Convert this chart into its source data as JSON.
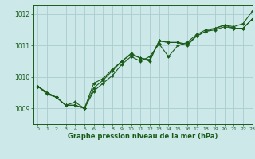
{
  "title": "Graphe pression niveau de la mer (hPa)",
  "background_color": "#cce8e8",
  "grid_color": "#aacccc",
  "line_color": "#1a5c1a",
  "xlim": [
    -0.5,
    23
  ],
  "ylim": [
    1008.5,
    1012.3
  ],
  "yticks": [
    1009,
    1010,
    1011,
    1012
  ],
  "xticks": [
    0,
    1,
    2,
    3,
    4,
    5,
    6,
    7,
    8,
    9,
    10,
    11,
    12,
    13,
    14,
    15,
    16,
    17,
    18,
    19,
    20,
    21,
    22,
    23
  ],
  "series": [
    {
      "x": [
        0,
        1,
        2,
        3,
        4,
        5,
        6,
        7,
        8,
        9,
        10,
        11,
        12,
        13,
        14,
        15,
        16,
        17,
        18,
        19,
        20,
        21,
        22,
        23
      ],
      "y": [
        1009.7,
        1009.5,
        1009.35,
        1009.1,
        1009.1,
        1009.0,
        1009.55,
        1009.8,
        1010.05,
        1010.4,
        1010.65,
        1010.5,
        1010.65,
        1011.05,
        1010.65,
        1011.0,
        1011.1,
        1011.35,
        1011.5,
        1011.55,
        1011.65,
        1011.6,
        1011.7,
        1012.1
      ],
      "has_markers": [
        1,
        1,
        1,
        1,
        1,
        1,
        1,
        1,
        1,
        1,
        1,
        1,
        1,
        1,
        1,
        1,
        1,
        1,
        1,
        1,
        1,
        1,
        1,
        1
      ]
    },
    {
      "x": [
        0,
        1,
        2,
        3,
        4,
        5,
        6,
        7,
        8,
        9,
        10,
        11,
        12,
        13,
        14,
        15,
        16,
        17,
        18,
        19,
        20,
        21,
        22,
        23
      ],
      "y": [
        1009.7,
        1009.5,
        1009.35,
        1009.1,
        1009.1,
        1009.0,
        1009.65,
        1009.9,
        1010.2,
        1010.5,
        1010.75,
        1010.6,
        1010.55,
        1011.15,
        1011.1,
        1011.1,
        1011.05,
        1011.3,
        1011.45,
        1011.5,
        1011.6,
        1011.55,
        1011.55,
        1011.85
      ],
      "has_markers": [
        1,
        1,
        1,
        1,
        1,
        1,
        1,
        1,
        1,
        1,
        1,
        1,
        1,
        1,
        1,
        1,
        1,
        1,
        1,
        1,
        1,
        1,
        1,
        1
      ]
    },
    {
      "x": [
        0,
        1,
        2,
        3,
        4,
        5,
        6,
        7,
        8,
        9,
        10,
        11,
        12,
        13,
        14,
        15,
        16,
        17,
        18,
        19,
        20,
        21,
        22,
        23
      ],
      "y": [
        1009.7,
        1009.45,
        1009.35,
        1009.1,
        1009.2,
        1009.0,
        1009.8,
        1009.95,
        1010.25,
        1010.5,
        1010.72,
        1010.6,
        1010.5,
        1011.15,
        1011.1,
        1011.1,
        1011.0,
        1011.3,
        1011.45,
        1011.55,
        1011.65,
        1011.55,
        1011.55,
        1011.85
      ],
      "has_markers": [
        1,
        1,
        1,
        1,
        1,
        1,
        1,
        1,
        1,
        1,
        1,
        1,
        1,
        1,
        1,
        1,
        1,
        1,
        1,
        1,
        1,
        1,
        1,
        1
      ]
    }
  ]
}
